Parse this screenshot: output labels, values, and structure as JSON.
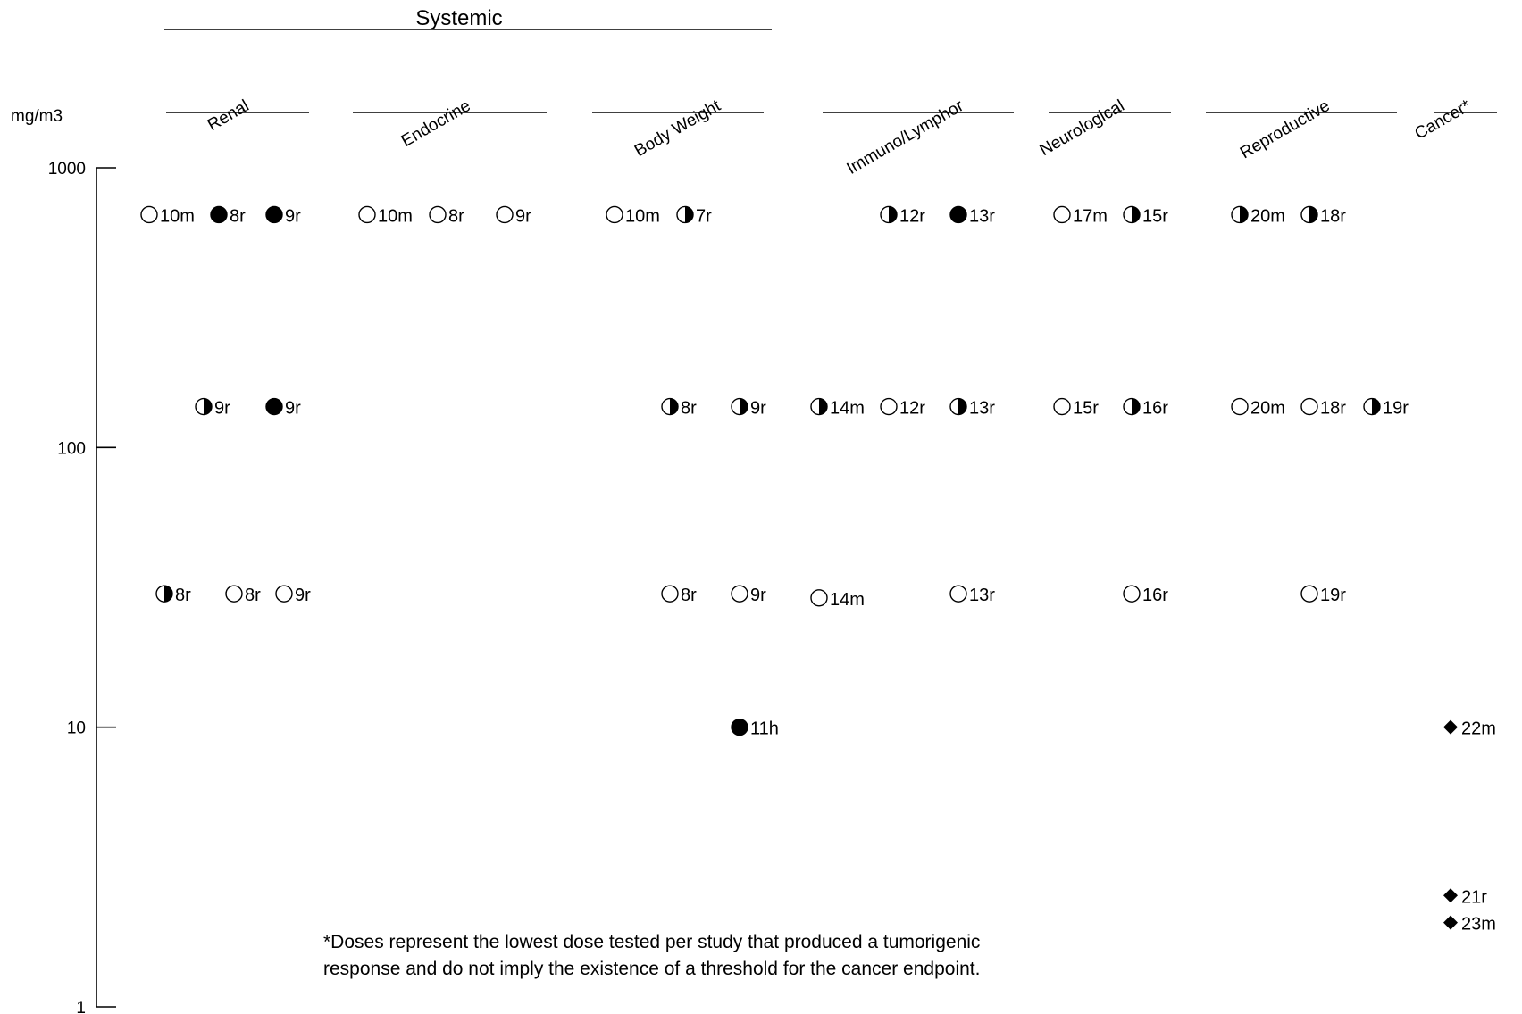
{
  "chart_data": {
    "type": "scatter",
    "scale": "log",
    "ylabel": "mg/m3",
    "ylim": [
      1,
      1000
    ],
    "yticks": [
      {
        "value": 1000,
        "label": "1000"
      },
      {
        "value": 100,
        "label": "100"
      },
      {
        "value": 10,
        "label": "10"
      },
      {
        "value": 1,
        "label": "1"
      }
    ],
    "group_label": "Systemic",
    "categories": [
      "Renal",
      "Endocrine",
      "Body Weight",
      "Immuno/Lymphor",
      "Neurological",
      "Reproductive",
      "Cancer*"
    ],
    "legend_markers": [
      "open-circle",
      "half-filled-circle",
      "filled-circle",
      "filled-diamond"
    ],
    "points": [
      {
        "category": "Renal",
        "marker": "open",
        "label": "10m",
        "y": 680
      },
      {
        "category": "Renal",
        "marker": "filled",
        "label": "8r",
        "y": 680
      },
      {
        "category": "Renal",
        "marker": "filled",
        "label": "9r",
        "y": 680
      },
      {
        "category": "Renal",
        "marker": "half",
        "label": "9r",
        "y": 140
      },
      {
        "category": "Renal",
        "marker": "filled",
        "label": "9r",
        "y": 140
      },
      {
        "category": "Renal",
        "marker": "half",
        "label": "8r",
        "y": 30
      },
      {
        "category": "Renal",
        "marker": "open",
        "label": "8r",
        "y": 30
      },
      {
        "category": "Renal",
        "marker": "open",
        "label": "9r",
        "y": 30
      },
      {
        "category": "Endocrine",
        "marker": "open",
        "label": "10m",
        "y": 680
      },
      {
        "category": "Endocrine",
        "marker": "open",
        "label": "8r",
        "y": 680
      },
      {
        "category": "Endocrine",
        "marker": "open",
        "label": "9r",
        "y": 680
      },
      {
        "category": "Body Weight",
        "marker": "open",
        "label": "10m",
        "y": 680
      },
      {
        "category": "Body Weight",
        "marker": "half",
        "label": "7r",
        "y": 680
      },
      {
        "category": "Body Weight",
        "marker": "half",
        "label": "8r",
        "y": 140
      },
      {
        "category": "Body Weight",
        "marker": "half",
        "label": "9r",
        "y": 140
      },
      {
        "category": "Body Weight",
        "marker": "open",
        "label": "8r",
        "y": 30
      },
      {
        "category": "Body Weight",
        "marker": "open",
        "label": "9r",
        "y": 30
      },
      {
        "category": "Body Weight",
        "marker": "filled",
        "label": "11h",
        "y": 10
      },
      {
        "category": "Immuno/Lymphor",
        "marker": "half",
        "label": "12r",
        "y": 680
      },
      {
        "category": "Immuno/Lymphor",
        "marker": "filled",
        "label": "13r",
        "y": 680
      },
      {
        "category": "Immuno/Lymphor",
        "marker": "half",
        "label": "14m",
        "y": 140
      },
      {
        "category": "Immuno/Lymphor",
        "marker": "open",
        "label": "12r",
        "y": 140
      },
      {
        "category": "Immuno/Lymphor",
        "marker": "half",
        "label": "13r",
        "y": 140
      },
      {
        "category": "Immuno/Lymphor",
        "marker": "open",
        "label": "14m",
        "y": 29
      },
      {
        "category": "Immuno/Lymphor",
        "marker": "open",
        "label": "13r",
        "y": 30
      },
      {
        "category": "Neurological",
        "marker": "open",
        "label": "17m",
        "y": 680
      },
      {
        "category": "Neurological",
        "marker": "half",
        "label": "15r",
        "y": 680
      },
      {
        "category": "Neurological",
        "marker": "open",
        "label": "15r",
        "y": 140
      },
      {
        "category": "Neurological",
        "marker": "half",
        "label": "16r",
        "y": 140
      },
      {
        "category": "Neurological",
        "marker": "open",
        "label": "16r",
        "y": 30
      },
      {
        "category": "Reproductive",
        "marker": "half",
        "label": "20m",
        "y": 680
      },
      {
        "category": "Reproductive",
        "marker": "half",
        "label": "18r",
        "y": 680
      },
      {
        "category": "Reproductive",
        "marker": "open",
        "label": "20m",
        "y": 140
      },
      {
        "category": "Reproductive",
        "marker": "open",
        "label": "18r",
        "y": 140
      },
      {
        "category": "Reproductive",
        "marker": "half",
        "label": "19r",
        "y": 140
      },
      {
        "category": "Reproductive",
        "marker": "open",
        "label": "19r",
        "y": 30
      },
      {
        "category": "Cancer*",
        "marker": "diamond",
        "label": "22m",
        "y": 10
      },
      {
        "category": "Cancer*",
        "marker": "diamond",
        "label": "21r",
        "y": 2.5
      },
      {
        "category": "Cancer*",
        "marker": "diamond",
        "label": "23m",
        "y": 2
      }
    ],
    "footnote": [
      "*Doses represent the lowest dose tested per study that produced a tumorigenic",
      "response and do not imply the existence of a threshold for the cancer endpoint."
    ],
    "grid": false,
    "legend": "none"
  }
}
